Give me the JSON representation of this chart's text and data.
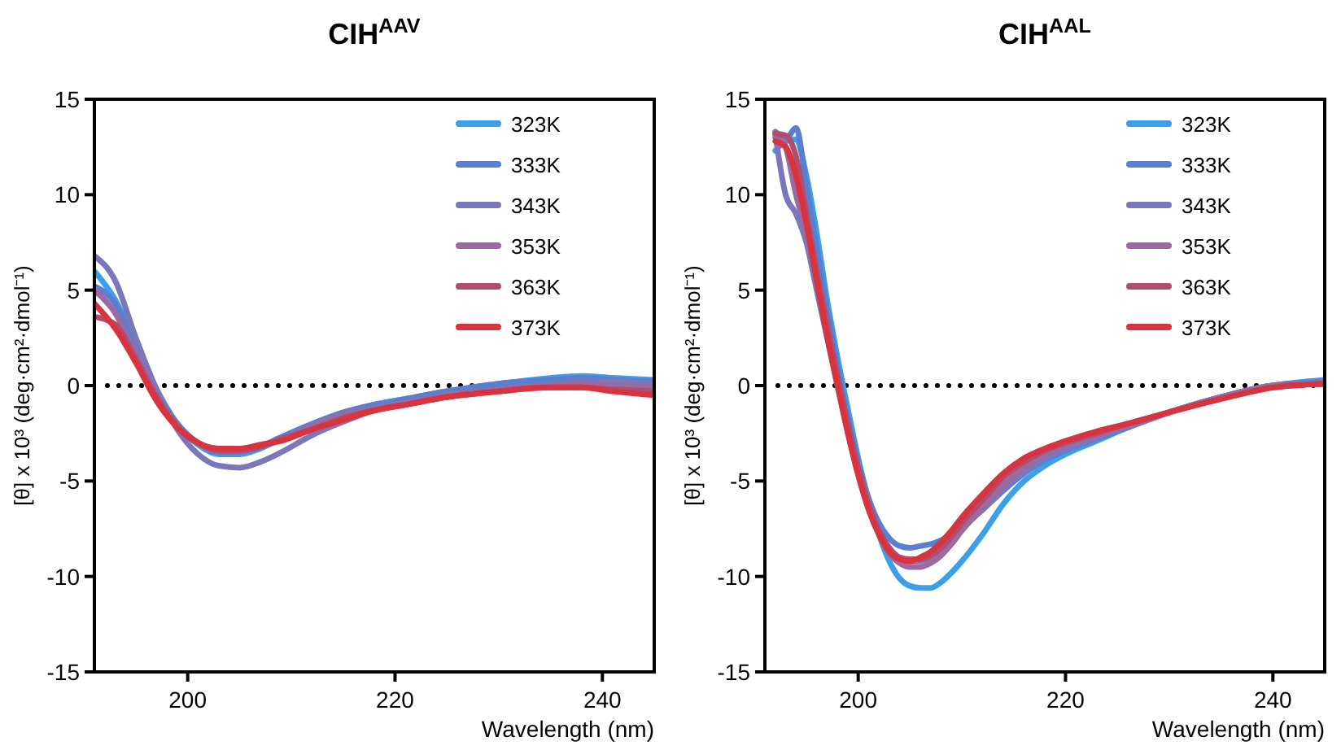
{
  "chart_data": [
    {
      "type": "line",
      "title": "CIH$^{AAV}$",
      "xlabel": "Wavelength (nm)",
      "ylabel": "[θ] x 10³ (deg·cm²·dmol⁻¹)",
      "x": [
        191,
        193,
        195,
        197,
        199,
        201,
        203,
        205,
        207,
        209,
        212,
        215,
        218,
        221,
        225,
        230,
        235,
        238,
        241,
        245
      ],
      "xlim": [
        191,
        245
      ],
      "xticks": [
        200,
        220,
        240
      ],
      "ylim": [
        -15,
        15
      ],
      "yticks": [
        -15,
        -10,
        -5,
        0,
        5,
        10,
        15
      ],
      "legend": "top right",
      "grid": false,
      "marker": "none",
      "line_style": "solid",
      "ref_lines": [
        {
          "axis": "y",
          "value": 0,
          "line_style": "dotted",
          "color": "#000000"
        }
      ],
      "series": [
        {
          "name": "323K",
          "color": "#3aa0e8",
          "values": [
            6.0,
            4.5,
            2.2,
            -0.2,
            -2.0,
            -3.1,
            -3.6,
            -3.6,
            -3.3,
            -2.8,
            -2.1,
            -1.5,
            -1.0,
            -0.7,
            -0.3,
            0.1,
            0.4,
            0.5,
            0.4,
            0.3
          ]
        },
        {
          "name": "333K",
          "color": "#5b7fd0",
          "values": [
            5.2,
            4.3,
            2.0,
            -0.3,
            -2.0,
            -3.0,
            -3.5,
            -3.5,
            -3.2,
            -2.7,
            -2.0,
            -1.4,
            -1.0,
            -0.7,
            -0.3,
            0.1,
            0.3,
            0.4,
            0.3,
            0.2
          ]
        },
        {
          "name": "343K",
          "color": "#7a78bb",
          "values": [
            6.8,
            5.5,
            2.5,
            -0.2,
            -2.3,
            -3.6,
            -4.2,
            -4.3,
            -4.0,
            -3.5,
            -2.6,
            -1.9,
            -1.3,
            -1.0,
            -0.6,
            -0.2,
            0.1,
            0.2,
            0.2,
            0.1
          ]
        },
        {
          "name": "353K",
          "color": "#9a6aa0",
          "values": [
            5.0,
            3.8,
            1.6,
            -0.5,
            -2.1,
            -3.0,
            -3.4,
            -3.4,
            -3.2,
            -2.8,
            -2.1,
            -1.5,
            -1.2,
            -0.9,
            -0.5,
            -0.2,
            0.0,
            0.1,
            0.0,
            -0.1
          ]
        },
        {
          "name": "363K",
          "color": "#b04e70",
          "values": [
            3.6,
            3.2,
            1.4,
            -0.6,
            -2.1,
            -3.0,
            -3.4,
            -3.4,
            -3.2,
            -2.8,
            -2.3,
            -1.7,
            -1.3,
            -1.0,
            -0.6,
            -0.3,
            -0.1,
            -0.1,
            -0.2,
            -0.3
          ]
        },
        {
          "name": "373K",
          "color": "#d8333f",
          "values": [
            4.3,
            3.0,
            1.2,
            -0.8,
            -2.2,
            -3.0,
            -3.3,
            -3.3,
            -3.1,
            -2.9,
            -2.3,
            -1.8,
            -1.3,
            -1.0,
            -0.6,
            -0.3,
            -0.1,
            -0.1,
            -0.3,
            -0.5
          ]
        }
      ]
    },
    {
      "type": "line",
      "title": "CIH$^{AAL}$",
      "xlabel": "Wavelength (nm)",
      "ylabel": "[θ] x 10³ (deg·cm²·dmol⁻¹)",
      "x": [
        192,
        193,
        194,
        195,
        196,
        197,
        198,
        199,
        200,
        201,
        202,
        203,
        204,
        205,
        206,
        207,
        208,
        209,
        210,
        212,
        214,
        216,
        218,
        220,
        223,
        226,
        230,
        235,
        240,
        245
      ],
      "xlim": [
        191,
        245
      ],
      "xticks": [
        200,
        220,
        240
      ],
      "ylim": [
        -15,
        15
      ],
      "yticks": [
        -15,
        -10,
        -5,
        0,
        5,
        10,
        15
      ],
      "legend": "top right",
      "grid": false,
      "marker": "none",
      "line_style": "solid",
      "ref_lines": [
        {
          "axis": "y",
          "value": 0,
          "line_style": "dotted",
          "color": "#000000"
        }
      ],
      "series": [
        {
          "name": "323K",
          "color": "#3aa0e8",
          "values": [
            12.3,
            12.8,
            12.9,
            11.0,
            8.0,
            4.5,
            1.5,
            -1.2,
            -3.8,
            -6.0,
            -7.8,
            -9.2,
            -10.1,
            -10.5,
            -10.6,
            -10.6,
            -10.3,
            -9.8,
            -9.2,
            -7.8,
            -6.2,
            -5.0,
            -4.2,
            -3.6,
            -2.9,
            -2.2,
            -1.4,
            -0.6,
            0.0,
            0.3
          ]
        },
        {
          "name": "333K",
          "color": "#5b7fd0",
          "values": [
            13.0,
            12.9,
            13.5,
            10.5,
            7.2,
            4.0,
            1.0,
            -1.7,
            -4.0,
            -5.9,
            -7.2,
            -8.0,
            -8.4,
            -8.5,
            -8.4,
            -8.3,
            -8.1,
            -7.8,
            -7.3,
            -6.5,
            -5.5,
            -4.6,
            -3.9,
            -3.4,
            -2.8,
            -2.2,
            -1.4,
            -0.6,
            0.0,
            0.2
          ]
        },
        {
          "name": "343K",
          "color": "#7a78bb",
          "values": [
            13.2,
            10.0,
            9.0,
            7.5,
            5.0,
            2.5,
            0.0,
            -2.4,
            -4.6,
            -6.4,
            -7.7,
            -8.6,
            -9.1,
            -9.2,
            -9.2,
            -9.0,
            -8.6,
            -8.1,
            -7.5,
            -6.5,
            -5.4,
            -4.5,
            -3.8,
            -3.3,
            -2.7,
            -2.1,
            -1.4,
            -0.6,
            0.0,
            0.2
          ]
        },
        {
          "name": "353K",
          "color": "#9a6aa0",
          "values": [
            13.3,
            12.5,
            10.0,
            8.0,
            5.5,
            2.8,
            0.3,
            -2.2,
            -4.5,
            -6.4,
            -7.8,
            -8.8,
            -9.3,
            -9.5,
            -9.5,
            -9.3,
            -8.9,
            -8.3,
            -7.6,
            -6.4,
            -5.2,
            -4.3,
            -3.6,
            -3.1,
            -2.6,
            -2.1,
            -1.4,
            -0.6,
            0.0,
            0.1
          ]
        },
        {
          "name": "363K",
          "color": "#b04e70",
          "values": [
            13.2,
            13.1,
            12.0,
            9.0,
            6.0,
            3.2,
            0.5,
            -2.0,
            -4.3,
            -6.2,
            -7.6,
            -8.5,
            -9.0,
            -9.1,
            -9.1,
            -8.9,
            -8.5,
            -7.9,
            -7.2,
            -6.0,
            -4.8,
            -4.0,
            -3.4,
            -3.0,
            -2.5,
            -2.0,
            -1.4,
            -0.7,
            -0.1,
            0.1
          ]
        },
        {
          "name": "373K",
          "color": "#d8333f",
          "values": [
            12.8,
            12.5,
            11.0,
            8.5,
            5.5,
            2.6,
            0.0,
            -2.5,
            -4.7,
            -6.5,
            -7.8,
            -8.7,
            -9.1,
            -9.2,
            -9.0,
            -8.7,
            -8.2,
            -7.6,
            -6.9,
            -5.7,
            -4.6,
            -3.8,
            -3.3,
            -2.9,
            -2.4,
            -2.0,
            -1.4,
            -0.7,
            -0.1,
            0.1
          ]
        }
      ]
    }
  ]
}
